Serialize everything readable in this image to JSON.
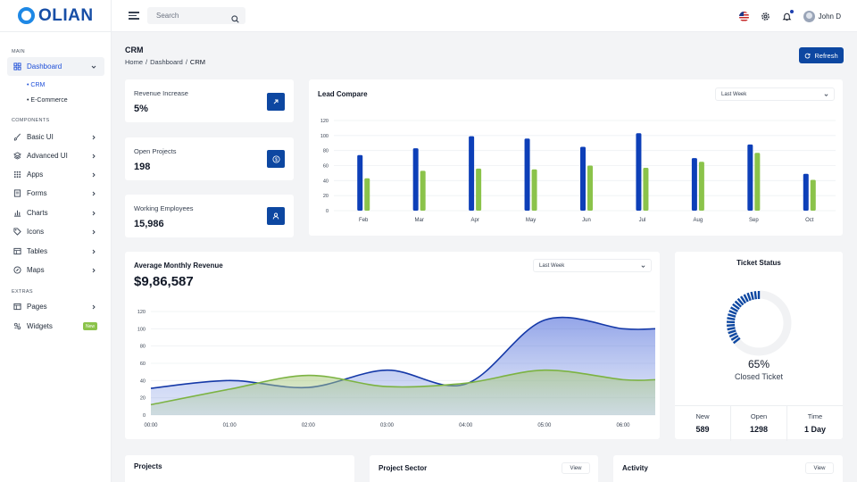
{
  "brand": {
    "name": "OLIAN"
  },
  "header": {
    "search_placeholder": "Search",
    "user_name": "John D"
  },
  "sidebar": {
    "sections": {
      "main": "MAIN",
      "components": "COMPONENTS",
      "extras": "EXTRAS"
    },
    "dashboard": {
      "label": "Dashboard",
      "sub": [
        "CRM",
        "E-Commerce"
      ]
    },
    "components": [
      "Basic UI",
      "Advanced UI",
      "Apps",
      "Forms",
      "Charts",
      "Icons",
      "Tables",
      "Maps"
    ],
    "extras": {
      "pages": "Pages",
      "widgets": "Widgets",
      "widgets_badge": "New"
    }
  },
  "page": {
    "title": "CRM",
    "breadcrumb": [
      "Home",
      "Dashboard",
      "CRM"
    ],
    "refresh_label": "Refresh"
  },
  "stats": [
    {
      "label": "Revenue Increase",
      "value": "5%",
      "icon": "arrow-up-right-icon"
    },
    {
      "label": "Open Projects",
      "value": "198",
      "icon": "dollar-icon"
    },
    {
      "label": "Working Employees",
      "value": "15,986",
      "icon": "user-icon"
    }
  ],
  "lead_compare": {
    "title": "Lead Compare",
    "filter": "Last Week"
  },
  "avg_revenue": {
    "title": "Average Monthly Revenue",
    "value": "$9,86,587",
    "filter": "Last Week"
  },
  "ticket_status": {
    "title": "Ticket Status",
    "percent": "65%",
    "percent_value": 65,
    "label": "Closed Ticket",
    "stats": [
      {
        "label": "New",
        "value": "589"
      },
      {
        "label": "Open",
        "value": "1298"
      },
      {
        "label": "Time",
        "value": "1 Day"
      }
    ]
  },
  "bottom_cards": {
    "projects": "Projects",
    "project_sector": "Project Sector",
    "activity": "Activity",
    "view_label": "View"
  },
  "colors": {
    "primary": "#0d47a1",
    "blue_series": "#0d3fb8",
    "green_series": "#8bc34a"
  },
  "chart_data": [
    {
      "type": "bar",
      "categories": [
        "Feb",
        "Mar",
        "Apr",
        "May",
        "Jun",
        "Jul",
        "Aug",
        "Sep",
        "Oct"
      ],
      "ylim": [
        0,
        120
      ],
      "yticks": [
        0,
        20,
        40,
        60,
        80,
        100,
        120
      ],
      "series": [
        {
          "values": [
            74,
            83,
            99,
            96,
            85,
            103,
            70,
            88,
            49
          ]
        },
        {
          "values": [
            43,
            53,
            56,
            55,
            60,
            57,
            65,
            77,
            41
          ]
        }
      ],
      "grid": true
    },
    {
      "type": "area",
      "x": [
        "00:00",
        "01:00",
        "02:00",
        "03:00",
        "04:00",
        "05:00",
        "06:00"
      ],
      "ylim": [
        0,
        120
      ],
      "yticks": [
        0,
        20,
        40,
        60,
        80,
        100,
        120
      ],
      "series": [
        {
          "points": [
            [
              0,
              31
            ],
            [
              1,
              40
            ],
            [
              2,
              32
            ],
            [
              3,
              52
            ],
            [
              4,
              36
            ],
            [
              5,
              110
            ],
            [
              6,
              100
            ]
          ]
        },
        {
          "points": [
            [
              0,
              12
            ],
            [
              1,
              30
            ],
            [
              2,
              46
            ],
            [
              3,
              33
            ],
            [
              4,
              37
            ],
            [
              5,
              52
            ],
            [
              6,
              41
            ]
          ]
        }
      ],
      "grid": true
    }
  ]
}
